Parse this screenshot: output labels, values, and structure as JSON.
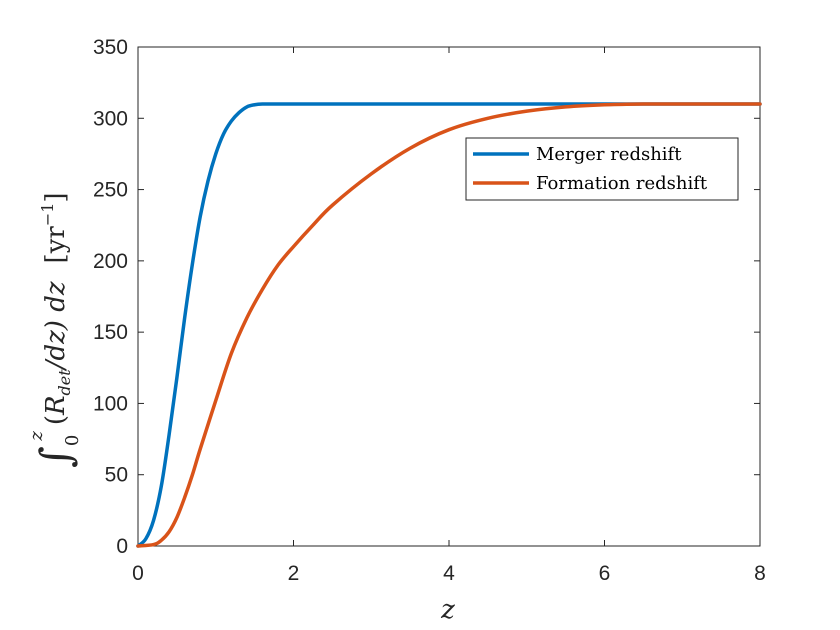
{
  "chart_data": {
    "type": "line",
    "xlabel": "z",
    "ylabel": "∫₀ᶻ (R_det/dz) dz   [yr⁻¹]",
    "ylabel_parts": {
      "integral": "∫",
      "lower": "0",
      "upper": "z",
      "open": "(",
      "R": "R",
      "sub": "det",
      "frac": "/dz) dz",
      "unit_open": "[yr",
      "exp": "−1",
      "unit_close": "]"
    },
    "xlim": [
      0,
      8
    ],
    "ylim": [
      0,
      350
    ],
    "xticks": [
      0,
      2,
      4,
      6,
      8
    ],
    "yticks": [
      0,
      50,
      100,
      150,
      200,
      250,
      300,
      350
    ],
    "grid": false,
    "legend_position": "upper-right",
    "series": [
      {
        "name": "Merger redshift",
        "color": "#0072BD",
        "x": [
          0,
          0.1,
          0.2,
          0.3,
          0.4,
          0.5,
          0.6,
          0.7,
          0.8,
          0.9,
          1.0,
          1.1,
          1.2,
          1.3,
          1.4,
          1.5,
          1.6,
          1.8,
          2,
          3,
          4,
          5,
          6,
          7,
          8
        ],
        "y": [
          0,
          5,
          18,
          42,
          78,
          118,
          160,
          198,
          231,
          256,
          275,
          289,
          298,
          304,
          308,
          309.5,
          310,
          310,
          310,
          310,
          310,
          310,
          310,
          310,
          310
        ]
      },
      {
        "name": "Formation redshift",
        "color": "#D95319",
        "x": [
          0,
          0.2,
          0.3,
          0.4,
          0.5,
          0.6,
          0.7,
          0.8,
          1.0,
          1.2,
          1.4,
          1.6,
          1.8,
          2.0,
          2.25,
          2.5,
          3.0,
          3.5,
          4.0,
          4.5,
          5.0,
          5.5,
          6.0,
          6.5,
          7.0,
          8.0
        ],
        "y": [
          0,
          1,
          4,
          10,
          20,
          34,
          50,
          68,
          102,
          135,
          160,
          180,
          197,
          210,
          225,
          239,
          261,
          279,
          292,
          300,
          305,
          308,
          309.5,
          310,
          310,
          310
        ]
      }
    ]
  }
}
